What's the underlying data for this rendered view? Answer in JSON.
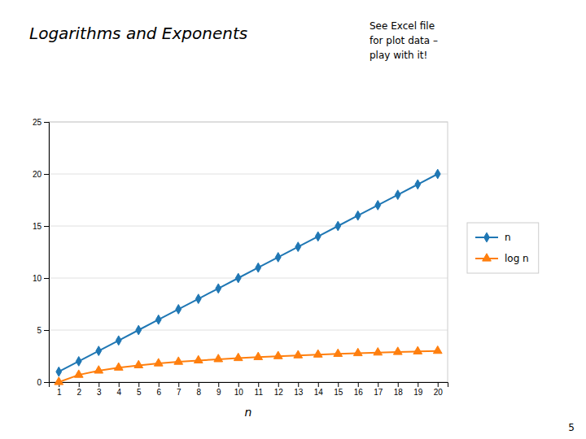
{
  "chart_data": {
    "type": "line",
    "title": "Logarithms and Exponents",
    "subtitle": "See Excel file\nfor plot data –\nplay with it!",
    "annotations": [
      "5"
    ],
    "xlabel": "n",
    "x": [
      1,
      2,
      3,
      4,
      5,
      6,
      7,
      8,
      9,
      10,
      11,
      12,
      13,
      14,
      15,
      16,
      17,
      18,
      19,
      20
    ],
    "series": [
      {
        "name": "n",
        "marker": "diamond",
        "values": [
          1,
          2,
          3,
          4,
          5,
          6,
          7,
          8,
          9,
          10,
          11,
          12,
          13,
          14,
          15,
          16,
          17,
          18,
          19,
          20
        ]
      },
      {
        "name": "log n",
        "marker": "triangle",
        "values": [
          0.0,
          0.693,
          1.099,
          1.386,
          1.609,
          1.792,
          1.946,
          2.079,
          2.197,
          2.303,
          2.398,
          2.485,
          2.565,
          2.639,
          2.708,
          2.773,
          2.833,
          2.89,
          2.944,
          2.996
        ]
      }
    ],
    "xlim": [
      0.5,
      20.5
    ],
    "xticks": [
      1,
      2,
      3,
      4,
      5,
      6,
      7,
      8,
      9,
      10,
      11,
      12,
      13,
      14,
      15,
      16,
      17,
      18,
      19,
      20
    ],
    "ylim": [
      0,
      25
    ],
    "yticks": [
      0,
      5,
      10,
      15,
      20,
      25
    ],
    "grid": true,
    "legend": "right"
  }
}
